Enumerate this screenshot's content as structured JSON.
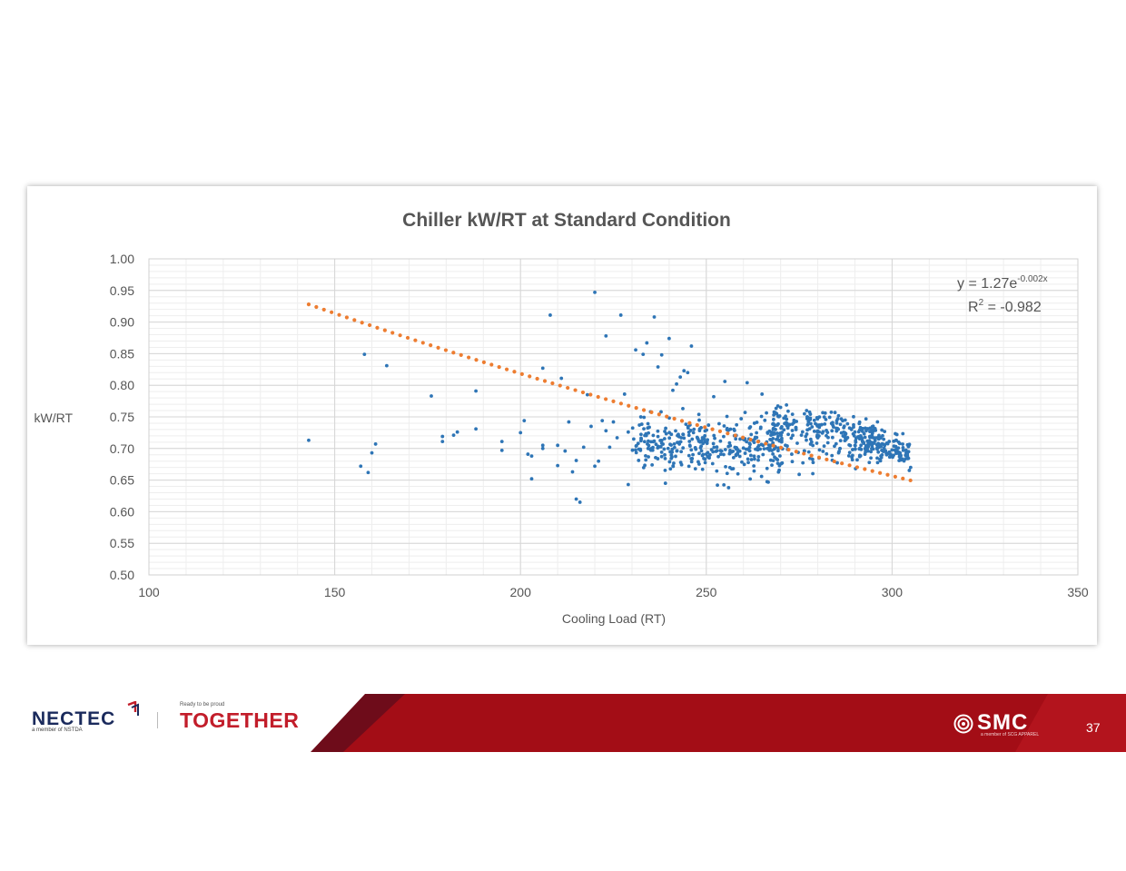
{
  "chart_data": {
    "type": "scatter",
    "title": "Chiller kW/RT at Standard Condition",
    "xlabel": "Cooling Load (RT)",
    "ylabel": "kW/RT",
    "xlim": [
      100,
      350
    ],
    "ylim": [
      0.5,
      1.0
    ],
    "x_ticks": [
      "100",
      "150",
      "200",
      "250",
      "300",
      "350"
    ],
    "y_ticks": [
      "0.50",
      "0.55",
      "0.60",
      "0.65",
      "0.70",
      "0.75",
      "0.80",
      "0.85",
      "0.90",
      "0.95",
      "1.00"
    ],
    "grid": true,
    "legend": "none",
    "point_color": "#2e75b6",
    "trendline_color": "#ed7d31",
    "trendline": {
      "type": "exponential-dotted",
      "x_start": 143,
      "x_end": 306,
      "y_start": 0.928,
      "y_end": 0.648
    },
    "equation": {
      "y_prefix": "y = 1.27e",
      "y_exponent": "-0.002x",
      "r2_prefix": "R",
      "r2_exponent": "2",
      "r2_suffix": " = -0.982"
    },
    "series": [
      {
        "points": [
          [
            143,
            0.713
          ],
          [
            157,
            0.672
          ],
          [
            158,
            0.849
          ],
          [
            159,
            0.662
          ],
          [
            160,
            0.693
          ],
          [
            161,
            0.707
          ],
          [
            164,
            0.831
          ],
          [
            176,
            0.783
          ],
          [
            179,
            0.719
          ],
          [
            179,
            0.711
          ],
          [
            182,
            0.721
          ],
          [
            183,
            0.726
          ],
          [
            188,
            0.791
          ],
          [
            188,
            0.731
          ],
          [
            195,
            0.711
          ],
          [
            195,
            0.697
          ],
          [
            200,
            0.725
          ],
          [
            201,
            0.744
          ],
          [
            202,
            0.691
          ],
          [
            203,
            0.652
          ],
          [
            203,
            0.688
          ],
          [
            206,
            0.7
          ],
          [
            206,
            0.705
          ],
          [
            206,
            0.827
          ],
          [
            208,
            0.911
          ],
          [
            210,
            0.705
          ],
          [
            210,
            0.673
          ],
          [
            211,
            0.811
          ],
          [
            212,
            0.696
          ],
          [
            213,
            0.742
          ],
          [
            214,
            0.663
          ],
          [
            215,
            0.62
          ],
          [
            215,
            0.681
          ],
          [
            216,
            0.615
          ],
          [
            217,
            0.702
          ],
          [
            218,
            0.785
          ],
          [
            219,
            0.735
          ],
          [
            220,
            0.947
          ],
          [
            220,
            0.672
          ],
          [
            221,
            0.68
          ],
          [
            222,
            0.744
          ],
          [
            223,
            0.728
          ],
          [
            223,
            0.878
          ],
          [
            224,
            0.702
          ],
          [
            225,
            0.742
          ],
          [
            226,
            0.717
          ],
          [
            227,
            0.911
          ],
          [
            228,
            0.786
          ],
          [
            229,
            0.726
          ],
          [
            229,
            0.643
          ],
          [
            231,
            0.856
          ],
          [
            232,
            0.737
          ],
          [
            233,
            0.849
          ],
          [
            234,
            0.867
          ],
          [
            235,
            0.758
          ],
          [
            236,
            0.908
          ],
          [
            237,
            0.829
          ],
          [
            238,
            0.848
          ],
          [
            239,
            0.645
          ],
          [
            240,
            0.874
          ],
          [
            241,
            0.792
          ],
          [
            242,
            0.802
          ],
          [
            243,
            0.813
          ],
          [
            244,
            0.823
          ],
          [
            245,
            0.82
          ],
          [
            246,
            0.862
          ],
          [
            248,
            0.754
          ],
          [
            249,
            0.667
          ],
          [
            250,
            0.691
          ],
          [
            251,
            0.69
          ],
          [
            252,
            0.782
          ],
          [
            253,
            0.642
          ],
          [
            255,
            0.806
          ],
          [
            256,
            0.638
          ],
          [
            258,
            0.69
          ],
          [
            261,
            0.804
          ],
          [
            262,
            0.689
          ],
          [
            265,
            0.786
          ],
          [
            267,
            0.697
          ],
          [
            270,
            0.765
          ],
          [
            273,
            0.691
          ],
          [
            275,
            0.659
          ],
          [
            277,
            0.76
          ],
          [
            278,
            0.748
          ],
          [
            280,
            0.717
          ],
          [
            282,
            0.756
          ],
          [
            284,
            0.741
          ],
          [
            285,
            0.732
          ],
          [
            286,
            0.7
          ],
          [
            288,
            0.739
          ],
          [
            290,
            0.726
          ],
          [
            292,
            0.712
          ],
          [
            294,
            0.719
          ],
          [
            296,
            0.699
          ],
          [
            298,
            0.705
          ],
          [
            299,
            0.692
          ],
          [
            301,
            0.703
          ],
          [
            302,
            0.693
          ],
          [
            303,
            0.697
          ],
          [
            305,
            0.67
          ]
        ],
        "dense_cluster": {
          "x_range": [
            228,
            306
          ],
          "y_range": [
            0.64,
            0.77
          ],
          "approx_point_count": 700
        }
      }
    ]
  },
  "footer": {
    "nectec_logo": "NECTEC",
    "nectec_sub": "a member of NSTDA",
    "together_small": "Ready to be proud",
    "together_logo": "TOGETHER",
    "smc_logo": "SMC",
    "smc_sub": "a member of SCG APPAREL",
    "page_number": "37"
  }
}
